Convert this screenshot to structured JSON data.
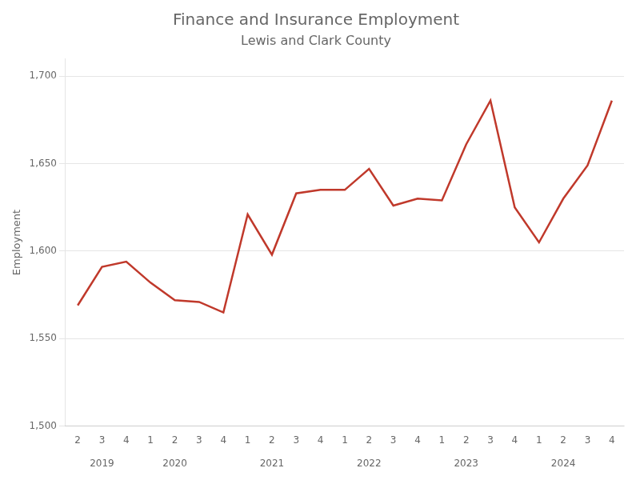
{
  "chart_data": {
    "type": "line",
    "title": "Finance and Insurance Employment",
    "subtitle": "Lewis and Clark County",
    "ylabel": "Employment",
    "categories": [
      "2",
      "3",
      "4",
      "1",
      "2",
      "3",
      "4",
      "1",
      "2",
      "3",
      "4",
      "1",
      "2",
      "3",
      "4",
      "1",
      "2",
      "3",
      "4",
      "1",
      "2",
      "3",
      "4"
    ],
    "values": [
      1569,
      1591,
      1594,
      1582,
      1572,
      1571,
      1565,
      1621,
      1598,
      1633,
      1635,
      1635,
      1647,
      1626,
      1630,
      1629,
      1661,
      1686,
      1625,
      1605,
      1630,
      1649,
      1686
    ],
    "color": "#C0392B",
    "ylim": [
      1500,
      1710
    ],
    "yticks": [
      {
        "value": 1500,
        "label": "1,500"
      },
      {
        "value": 1550,
        "label": "1,550"
      },
      {
        "value": 1600,
        "label": "1,600"
      },
      {
        "value": 1650,
        "label": "1,650"
      },
      {
        "value": 1700,
        "label": "1,700"
      }
    ],
    "grid": true,
    "annotations": [
      {
        "text": "2019",
        "x": 1
      },
      {
        "text": "2020",
        "x": 4
      },
      {
        "text": "2021",
        "x": 8
      },
      {
        "text": "2022",
        "x": 12
      },
      {
        "text": "2023",
        "x": 16
      },
      {
        "text": "2024",
        "x": 20
      }
    ]
  }
}
